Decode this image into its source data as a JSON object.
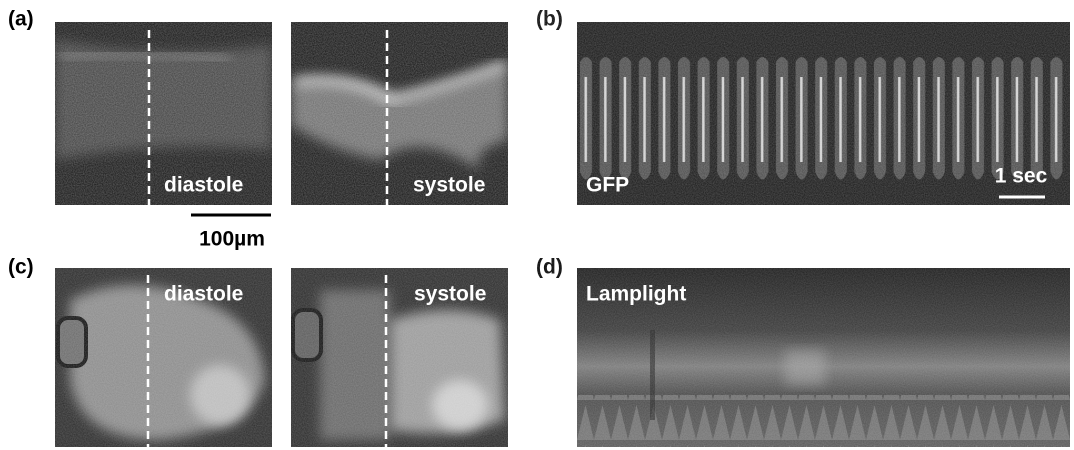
{
  "panels": [
    {
      "label": "(a)",
      "images": [
        {
          "caption": "diastole"
        },
        {
          "caption": "systole"
        }
      ],
      "scale_bar": "100µm"
    },
    {
      "label": "(b)",
      "caption": "GFP",
      "scale_bar": "1 sec"
    },
    {
      "label": "(c)",
      "images": [
        {
          "caption": "diastole"
        },
        {
          "caption": "systole"
        }
      ]
    },
    {
      "label": "(d)",
      "caption": "Lamplight"
    }
  ]
}
